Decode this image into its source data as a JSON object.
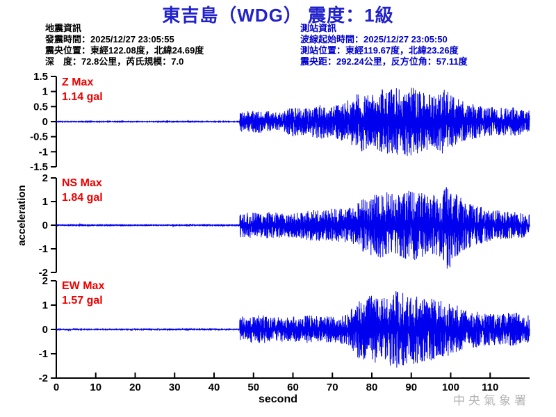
{
  "title": "東吉島（WDG） 震度：1級",
  "colors": {
    "title": "#2222cc",
    "info_left_text": "#000000",
    "info_right_text": "#0000cc",
    "waveform": "#0000ee",
    "max_label": "#ee0000",
    "axis": "#000000",
    "watermark": "#b3b3b3"
  },
  "earthquake_info": {
    "heading": "地震資訊",
    "origin_time": "發震時間：2025/12/27 23:05:55",
    "epicenter": "震央位置：東經122.08度，北緯24.69度",
    "depth_magnitude": "深　度：72.8公里，芮氏規模：7.0"
  },
  "station_info": {
    "heading": "測站資訊",
    "wave_start_time": "波線起始時間：2025/12/27 23:05:50",
    "station_location": "測站位置：東經119.67度，北緯23.26度",
    "epicentral_distance": "震央距：292.24公里，反方位角：57.11度"
  },
  "watermark": "中央氣象署",
  "chart_data": {
    "type": "line",
    "subtype": "seismogram",
    "title": "東吉島（WDG） 震度：1級",
    "xlabel": "second",
    "ylabel": "acceleration",
    "unit": "gal",
    "x_range": [
      0,
      120
    ],
    "x_ticks": [
      0,
      10,
      20,
      30,
      40,
      50,
      60,
      70,
      80,
      90,
      100,
      110
    ],
    "grid": false,
    "legend_position": "none",
    "p_onset_s": 46.5,
    "strong_phase_s": [
      75,
      102
    ],
    "series": [
      {
        "name": "Z",
        "max_line1": "Z Max",
        "max_line2": "1.14 gal",
        "max_gal": 1.14,
        "ylim": 1.5,
        "y_ticks": [
          1.5,
          1,
          0.5,
          0,
          -0.5,
          -1,
          -1.5
        ],
        "envelope_gal": [
          [
            0,
            0.01
          ],
          [
            46,
            0.01
          ],
          [
            46.6,
            0.3
          ],
          [
            52,
            0.33
          ],
          [
            57,
            0.25
          ],
          [
            60,
            0.45
          ],
          [
            63,
            0.38
          ],
          [
            67,
            0.52
          ],
          [
            70,
            0.45
          ],
          [
            74,
            0.62
          ],
          [
            77,
            0.88
          ],
          [
            80,
            0.8
          ],
          [
            84,
            1.02
          ],
          [
            87,
            0.95
          ],
          [
            90,
            1.05
          ],
          [
            93,
            0.85
          ],
          [
            96,
            0.8
          ],
          [
            99,
            1.0
          ],
          [
            101,
            0.7
          ],
          [
            104,
            0.55
          ],
          [
            108,
            0.45
          ],
          [
            112,
            0.4
          ],
          [
            116,
            0.42
          ],
          [
            120,
            0.34
          ]
        ]
      },
      {
        "name": "NS",
        "max_line1": "NS Max",
        "max_line2": "1.84 gal",
        "max_gal": 1.84,
        "ylim": 2,
        "y_ticks": [
          2,
          1,
          0,
          -1,
          -2
        ],
        "envelope_gal": [
          [
            0,
            0.01
          ],
          [
            46,
            0.01
          ],
          [
            46.6,
            0.36
          ],
          [
            52,
            0.42
          ],
          [
            58,
            0.36
          ],
          [
            64,
            0.46
          ],
          [
            70,
            0.5
          ],
          [
            75,
            0.55
          ],
          [
            78,
            0.82
          ],
          [
            82,
            1.05
          ],
          [
            86,
            0.92
          ],
          [
            90,
            1.08
          ],
          [
            94,
            0.95
          ],
          [
            97,
            0.9
          ],
          [
            99.5,
            1.5
          ],
          [
            100.5,
            1.05
          ],
          [
            103,
            0.78
          ],
          [
            106,
            0.62
          ],
          [
            110,
            0.48
          ],
          [
            114,
            0.42
          ],
          [
            120,
            0.36
          ]
        ]
      },
      {
        "name": "EW",
        "max_line1": "EW Max",
        "max_line2": "1.57 gal",
        "max_gal": 1.57,
        "ylim": 2,
        "y_ticks": [
          2,
          1,
          0,
          -1,
          -2
        ],
        "envelope_gal": [
          [
            0,
            0.01
          ],
          [
            46,
            0.01
          ],
          [
            46.6,
            0.42
          ],
          [
            52,
            0.46
          ],
          [
            58,
            0.4
          ],
          [
            64,
            0.46
          ],
          [
            70,
            0.42
          ],
          [
            74,
            0.52
          ],
          [
            76,
            0.92
          ],
          [
            80,
            1.12
          ],
          [
            83,
            1.02
          ],
          [
            86,
            1.32
          ],
          [
            89,
            1.18
          ],
          [
            92,
            1.12
          ],
          [
            95,
            1.02
          ],
          [
            98,
            0.92
          ],
          [
            101,
            0.82
          ],
          [
            104,
            0.62
          ],
          [
            108,
            0.56
          ],
          [
            112,
            0.52
          ],
          [
            116,
            0.56
          ],
          [
            120,
            0.46
          ]
        ]
      }
    ]
  }
}
